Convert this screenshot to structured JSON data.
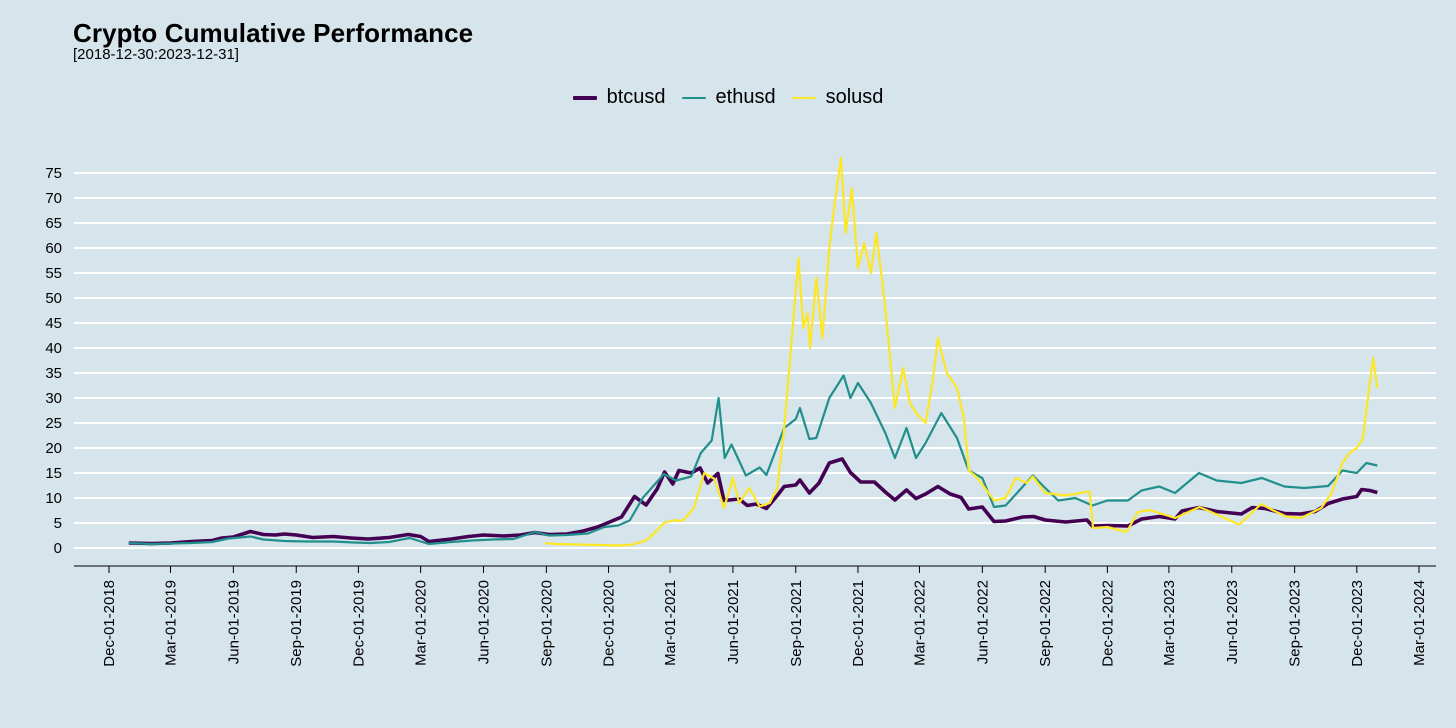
{
  "chart_data": {
    "type": "line",
    "title": "Crypto Cumulative Performance",
    "subtitle": "[2018-12-30:2023-12-31]",
    "xlabel": "",
    "ylabel": "",
    "ylim": [
      0,
      78
    ],
    "y_ticks": [
      0,
      5,
      10,
      15,
      20,
      25,
      30,
      35,
      40,
      45,
      50,
      55,
      60,
      65,
      70,
      75
    ],
    "x_range": [
      "2018-12-01",
      "2024-03-01"
    ],
    "x_ticks": [
      "Dec-01-2018",
      "Mar-01-2019",
      "Jun-01-2019",
      "Sep-01-2019",
      "Dec-01-2019",
      "Mar-01-2020",
      "Jun-01-2020",
      "Sep-01-2020",
      "Dec-01-2020",
      "Mar-01-2021",
      "Jun-01-2021",
      "Sep-01-2021",
      "Dec-01-2021",
      "Mar-01-2022",
      "Jun-01-2022",
      "Sep-01-2022",
      "Dec-01-2022",
      "Mar-01-2023",
      "Jun-01-2023",
      "Sep-01-2023",
      "Dec-01-2023",
      "Mar-01-2024"
    ],
    "grid": "horizontal",
    "legend_position": "top",
    "series": [
      {
        "name": "btcusd",
        "color": "#440154",
        "points": [
          [
            "2018-12-30",
            1.0
          ],
          [
            "2019-02-01",
            0.9
          ],
          [
            "2019-03-01",
            1.0
          ],
          [
            "2019-04-01",
            1.3
          ],
          [
            "2019-05-01",
            1.5
          ],
          [
            "2019-05-15",
            2.0
          ],
          [
            "2019-06-01",
            2.2
          ],
          [
            "2019-06-26",
            3.3
          ],
          [
            "2019-07-15",
            2.7
          ],
          [
            "2019-08-01",
            2.6
          ],
          [
            "2019-08-15",
            2.8
          ],
          [
            "2019-09-01",
            2.6
          ],
          [
            "2019-09-25",
            2.1
          ],
          [
            "2019-10-25",
            2.3
          ],
          [
            "2019-11-20",
            2.0
          ],
          [
            "2019-12-15",
            1.8
          ],
          [
            "2020-01-15",
            2.1
          ],
          [
            "2020-02-12",
            2.7
          ],
          [
            "2020-03-01",
            2.3
          ],
          [
            "2020-03-13",
            1.3
          ],
          [
            "2020-04-15",
            1.8
          ],
          [
            "2020-05-10",
            2.3
          ],
          [
            "2020-06-01",
            2.6
          ],
          [
            "2020-07-01",
            2.4
          ],
          [
            "2020-07-25",
            2.6
          ],
          [
            "2020-08-15",
            3.1
          ],
          [
            "2020-09-05",
            2.7
          ],
          [
            "2020-10-01",
            2.8
          ],
          [
            "2020-10-25",
            3.4
          ],
          [
            "2020-11-15",
            4.2
          ],
          [
            "2020-12-01",
            5.1
          ],
          [
            "2020-12-20",
            6.2
          ],
          [
            "2021-01-08",
            10.3
          ],
          [
            "2021-01-25",
            8.6
          ],
          [
            "2021-02-10",
            11.8
          ],
          [
            "2021-02-21",
            15.2
          ],
          [
            "2021-03-05",
            12.8
          ],
          [
            "2021-03-14",
            15.5
          ],
          [
            "2021-04-01",
            15.0
          ],
          [
            "2021-04-14",
            16.0
          ],
          [
            "2021-04-25",
            13.0
          ],
          [
            "2021-05-10",
            14.9
          ],
          [
            "2021-05-19",
            9.5
          ],
          [
            "2021-06-10",
            9.8
          ],
          [
            "2021-06-22",
            8.5
          ],
          [
            "2021-07-05",
            8.8
          ],
          [
            "2021-07-20",
            7.9
          ],
          [
            "2021-08-05",
            10.5
          ],
          [
            "2021-08-15",
            12.3
          ],
          [
            "2021-09-01",
            12.6
          ],
          [
            "2021-09-07",
            13.6
          ],
          [
            "2021-09-21",
            11.0
          ],
          [
            "2021-10-05",
            13.0
          ],
          [
            "2021-10-20",
            17.0
          ],
          [
            "2021-11-08",
            17.8
          ],
          [
            "2021-11-20",
            15.1
          ],
          [
            "2021-12-05",
            13.2
          ],
          [
            "2021-12-25",
            13.2
          ],
          [
            "2022-01-10",
            11.2
          ],
          [
            "2022-01-24",
            9.6
          ],
          [
            "2022-02-10",
            11.6
          ],
          [
            "2022-02-24",
            9.9
          ],
          [
            "2022-03-10",
            10.8
          ],
          [
            "2022-03-28",
            12.3
          ],
          [
            "2022-04-15",
            10.8
          ],
          [
            "2022-05-01",
            10.1
          ],
          [
            "2022-05-12",
            7.8
          ],
          [
            "2022-06-01",
            8.2
          ],
          [
            "2022-06-18",
            5.3
          ],
          [
            "2022-07-05",
            5.4
          ],
          [
            "2022-07-30",
            6.2
          ],
          [
            "2022-08-15",
            6.3
          ],
          [
            "2022-09-01",
            5.6
          ],
          [
            "2022-10-01",
            5.2
          ],
          [
            "2022-11-01",
            5.6
          ],
          [
            "2022-11-09",
            4.4
          ],
          [
            "2022-12-01",
            4.5
          ],
          [
            "2022-12-31",
            4.4
          ],
          [
            "2023-01-20",
            5.8
          ],
          [
            "2023-02-15",
            6.3
          ],
          [
            "2023-03-10",
            5.8
          ],
          [
            "2023-03-20",
            7.4
          ],
          [
            "2023-04-14",
            8.1
          ],
          [
            "2023-05-10",
            7.3
          ],
          [
            "2023-06-15",
            6.8
          ],
          [
            "2023-07-01",
            8.1
          ],
          [
            "2023-07-20",
            7.9
          ],
          [
            "2023-08-17",
            6.9
          ],
          [
            "2023-09-10",
            6.8
          ],
          [
            "2023-10-01",
            7.3
          ],
          [
            "2023-10-20",
            8.9
          ],
          [
            "2023-11-10",
            9.8
          ],
          [
            "2023-12-01",
            10.3
          ],
          [
            "2023-12-08",
            11.7
          ],
          [
            "2023-12-20",
            11.5
          ],
          [
            "2023-12-31",
            11.1
          ]
        ]
      },
      {
        "name": "ethusd",
        "color": "#21908c",
        "points": [
          [
            "2018-12-30",
            1.0
          ],
          [
            "2019-02-01",
            0.8
          ],
          [
            "2019-03-01",
            0.9
          ],
          [
            "2019-04-01",
            1.0
          ],
          [
            "2019-05-01",
            1.2
          ],
          [
            "2019-05-25",
            1.9
          ],
          [
            "2019-06-26",
            2.3
          ],
          [
            "2019-07-15",
            1.7
          ],
          [
            "2019-08-15",
            1.4
          ],
          [
            "2019-09-15",
            1.3
          ],
          [
            "2019-10-25",
            1.3
          ],
          [
            "2019-11-25",
            1.1
          ],
          [
            "2019-12-18",
            1.0
          ],
          [
            "2020-01-15",
            1.2
          ],
          [
            "2020-02-14",
            2.0
          ],
          [
            "2020-03-13",
            0.8
          ],
          [
            "2020-04-15",
            1.2
          ],
          [
            "2020-05-15",
            1.5
          ],
          [
            "2020-06-15",
            1.7
          ],
          [
            "2020-07-15",
            1.8
          ],
          [
            "2020-08-15",
            3.2
          ],
          [
            "2020-09-05",
            2.5
          ],
          [
            "2020-10-01",
            2.6
          ],
          [
            "2020-11-01",
            2.9
          ],
          [
            "2020-11-25",
            4.2
          ],
          [
            "2020-12-15",
            4.5
          ],
          [
            "2021-01-01",
            5.5
          ],
          [
            "2021-01-20",
            10.0
          ],
          [
            "2021-02-20",
            14.8
          ],
          [
            "2021-03-10",
            13.5
          ],
          [
            "2021-04-01",
            14.3
          ],
          [
            "2021-04-15",
            19.0
          ],
          [
            "2021-05-01",
            21.5
          ],
          [
            "2021-05-11",
            30.0
          ],
          [
            "2021-05-20",
            18.0
          ],
          [
            "2021-05-30",
            20.7
          ],
          [
            "2021-06-20",
            14.5
          ],
          [
            "2021-07-10",
            16.1
          ],
          [
            "2021-07-20",
            14.6
          ],
          [
            "2021-08-15",
            24.0
          ],
          [
            "2021-09-01",
            25.8
          ],
          [
            "2021-09-07",
            28.0
          ],
          [
            "2021-09-21",
            21.8
          ],
          [
            "2021-10-01",
            22.0
          ],
          [
            "2021-10-20",
            30.0
          ],
          [
            "2021-11-10",
            34.5
          ],
          [
            "2021-11-20",
            30.0
          ],
          [
            "2021-12-01",
            33.0
          ],
          [
            "2021-12-20",
            29.0
          ],
          [
            "2022-01-10",
            23.0
          ],
          [
            "2022-01-24",
            18.0
          ],
          [
            "2022-02-10",
            24.0
          ],
          [
            "2022-02-24",
            18.0
          ],
          [
            "2022-03-10",
            21.0
          ],
          [
            "2022-04-02",
            27.0
          ],
          [
            "2022-04-25",
            22.0
          ],
          [
            "2022-05-12",
            15.5
          ],
          [
            "2022-06-01",
            14.0
          ],
          [
            "2022-06-18",
            8.2
          ],
          [
            "2022-07-05",
            8.5
          ],
          [
            "2022-08-14",
            14.5
          ],
          [
            "2022-09-01",
            12.0
          ],
          [
            "2022-09-20",
            9.5
          ],
          [
            "2022-10-15",
            10.0
          ],
          [
            "2022-11-09",
            8.5
          ],
          [
            "2022-12-01",
            9.5
          ],
          [
            "2022-12-31",
            9.5
          ],
          [
            "2023-01-20",
            11.5
          ],
          [
            "2023-02-15",
            12.3
          ],
          [
            "2023-03-10",
            11.0
          ],
          [
            "2023-04-14",
            15.0
          ],
          [
            "2023-05-10",
            13.5
          ],
          [
            "2023-06-15",
            13.0
          ],
          [
            "2023-07-15",
            14.0
          ],
          [
            "2023-08-17",
            12.3
          ],
          [
            "2023-09-15",
            12.0
          ],
          [
            "2023-10-20",
            12.4
          ],
          [
            "2023-11-10",
            15.5
          ],
          [
            "2023-12-01",
            15.0
          ],
          [
            "2023-12-15",
            17.0
          ],
          [
            "2023-12-31",
            16.5
          ]
        ]
      },
      {
        "name": "solusd",
        "color": "#fde725",
        "points": [
          [
            "2020-08-30",
            1.0
          ],
          [
            "2020-09-15",
            0.8
          ],
          [
            "2020-10-15",
            0.7
          ],
          [
            "2020-11-15",
            0.6
          ],
          [
            "2020-12-15",
            0.5
          ],
          [
            "2021-01-05",
            0.7
          ],
          [
            "2021-01-25",
            1.5
          ],
          [
            "2021-02-10",
            3.5
          ],
          [
            "2021-02-20",
            5.0
          ],
          [
            "2021-03-05",
            5.5
          ],
          [
            "2021-03-20",
            5.5
          ],
          [
            "2021-04-05",
            8.0
          ],
          [
            "2021-04-20",
            15.0
          ],
          [
            "2021-05-05",
            13.8
          ],
          [
            "2021-05-19",
            8.0
          ],
          [
            "2021-06-01",
            14.0
          ],
          [
            "2021-06-10",
            9.0
          ],
          [
            "2021-06-25",
            12.0
          ],
          [
            "2021-07-10",
            8.3
          ],
          [
            "2021-07-25",
            9.0
          ],
          [
            "2021-08-05",
            12.0
          ],
          [
            "2021-08-15",
            24.0
          ],
          [
            "2021-08-25",
            40.0
          ],
          [
            "2021-09-05",
            58.0
          ],
          [
            "2021-09-12",
            44.0
          ],
          [
            "2021-09-18",
            47.0
          ],
          [
            "2021-09-22",
            40.0
          ],
          [
            "2021-10-01",
            54.0
          ],
          [
            "2021-10-10",
            42.0
          ],
          [
            "2021-10-20",
            60.0
          ],
          [
            "2021-10-28",
            69.0
          ],
          [
            "2021-11-06",
            78.0
          ],
          [
            "2021-11-13",
            63.0
          ],
          [
            "2021-11-22",
            72.0
          ],
          [
            "2021-12-01",
            56.0
          ],
          [
            "2021-12-10",
            61.0
          ],
          [
            "2021-12-20",
            55.0
          ],
          [
            "2021-12-28",
            63.0
          ],
          [
            "2022-01-10",
            48.0
          ],
          [
            "2022-01-24",
            28.0
          ],
          [
            "2022-02-05",
            36.0
          ],
          [
            "2022-02-15",
            29.0
          ],
          [
            "2022-02-24",
            27.0
          ],
          [
            "2022-03-10",
            25.0
          ],
          [
            "2022-03-20",
            33.0
          ],
          [
            "2022-03-28",
            42.0
          ],
          [
            "2022-04-10",
            35.0
          ],
          [
            "2022-04-25",
            32.0
          ],
          [
            "2022-05-05",
            26.0
          ],
          [
            "2022-05-12",
            15.5
          ],
          [
            "2022-05-25",
            14.0
          ],
          [
            "2022-06-18",
            9.5
          ],
          [
            "2022-07-05",
            10.0
          ],
          [
            "2022-07-20",
            14.0
          ],
          [
            "2022-08-05",
            13.0
          ],
          [
            "2022-08-14",
            14.3
          ],
          [
            "2022-09-01",
            11.0
          ],
          [
            "2022-10-01",
            10.5
          ],
          [
            "2022-11-05",
            11.3
          ],
          [
            "2022-11-10",
            4.0
          ],
          [
            "2022-12-01",
            4.2
          ],
          [
            "2022-12-29",
            3.2
          ],
          [
            "2023-01-15",
            7.2
          ],
          [
            "2023-02-01",
            7.6
          ],
          [
            "2023-03-10",
            6.0
          ],
          [
            "2023-04-15",
            8.2
          ],
          [
            "2023-05-10",
            6.7
          ],
          [
            "2023-06-12",
            4.7
          ],
          [
            "2023-07-14",
            8.8
          ],
          [
            "2023-08-01",
            7.5
          ],
          [
            "2023-08-20",
            6.3
          ],
          [
            "2023-09-10",
            6.0
          ],
          [
            "2023-10-10",
            8.0
          ],
          [
            "2023-10-25",
            11.0
          ],
          [
            "2023-11-10",
            17.0
          ],
          [
            "2023-11-20",
            19.0
          ],
          [
            "2023-12-01",
            20.0
          ],
          [
            "2023-12-10",
            22.0
          ],
          [
            "2023-12-20",
            33.0
          ],
          [
            "2023-12-25",
            38.0
          ],
          [
            "2023-12-31",
            32.0
          ]
        ]
      }
    ]
  }
}
